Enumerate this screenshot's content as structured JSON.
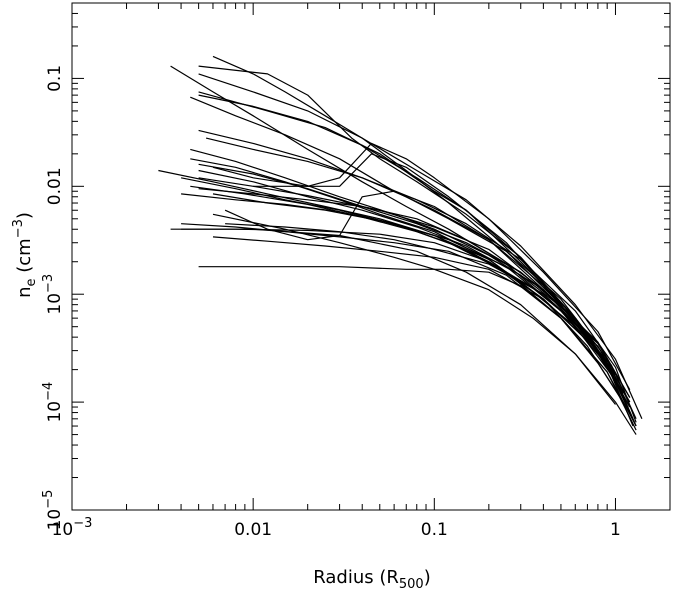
{
  "chart_data": {
    "type": "line",
    "title": "",
    "xlabel": {
      "text": "Radius (R",
      "sub": "500",
      "suffix": ")"
    },
    "ylabel": {
      "pre": "n",
      "sub": "e",
      "mid": " (cm",
      "sup": "−3",
      "post": ")"
    },
    "xscale": "log",
    "yscale": "log",
    "xlim": [
      0.001,
      2
    ],
    "ylim": [
      1e-05,
      0.5
    ],
    "grid": false,
    "legend": "none",
    "line_color": "#000000",
    "x_ticks": [
      {
        "value": 0.001,
        "base": "10",
        "exp": "−3"
      },
      {
        "value": 0.01,
        "text": "0.01"
      },
      {
        "value": 0.1,
        "text": "0.1"
      },
      {
        "value": 1,
        "text": "1"
      }
    ],
    "y_ticks": [
      {
        "value": 1e-05,
        "base": "10",
        "exp": "−5"
      },
      {
        "value": 0.0001,
        "base": "10",
        "exp": "−4"
      },
      {
        "value": 0.001,
        "base": "10",
        "exp": "−3"
      },
      {
        "value": 0.01,
        "text": "0.01"
      },
      {
        "value": 0.1,
        "text": "0.1"
      }
    ],
    "series": [
      {
        "x": [
          0.005,
          0.012,
          0.02,
          0.035,
          0.05,
          0.08,
          0.15,
          0.3,
          0.55,
          0.9,
          1.25
        ],
        "y": [
          0.13,
          0.11,
          0.07,
          0.028,
          0.018,
          0.011,
          0.0055,
          0.0022,
          0.0007,
          0.00023,
          7e-05
        ]
      },
      {
        "x": [
          0.006,
          0.01,
          0.015,
          0.025,
          0.04,
          0.07,
          0.12,
          0.25,
          0.5,
          0.9,
          1.2
        ],
        "y": [
          0.16,
          0.11,
          0.075,
          0.045,
          0.028,
          0.014,
          0.007,
          0.0025,
          0.0008,
          0.00023,
          8e-05
        ]
      },
      {
        "x": [
          0.0035,
          0.006,
          0.01,
          0.02,
          0.04,
          0.07,
          0.12,
          0.25,
          0.5,
          0.95,
          1.3
        ],
        "y": [
          0.13,
          0.075,
          0.045,
          0.022,
          0.011,
          0.0065,
          0.004,
          0.0019,
          0.0007,
          0.00022,
          7e-05
        ]
      },
      {
        "x": [
          0.0045,
          0.008,
          0.015,
          0.03,
          0.06,
          0.1,
          0.2,
          0.4,
          0.7,
          1.2
        ],
        "y": [
          0.067,
          0.045,
          0.03,
          0.018,
          0.009,
          0.006,
          0.0032,
          0.0012,
          0.0004,
          0.0001
        ]
      },
      {
        "x": [
          0.005,
          0.01,
          0.02,
          0.04,
          0.08,
          0.15,
          0.3,
          0.6,
          1.0,
          1.4
        ],
        "y": [
          0.11,
          0.075,
          0.05,
          0.028,
          0.014,
          0.0075,
          0.0028,
          0.0008,
          0.00025,
          7e-05
        ]
      },
      {
        "x": [
          0.005,
          0.01,
          0.02,
          0.04,
          0.08,
          0.15,
          0.3,
          0.6,
          1.0
        ],
        "y": [
          0.07,
          0.055,
          0.04,
          0.024,
          0.012,
          0.006,
          0.0022,
          0.0006,
          0.00017
        ]
      },
      {
        "x": [
          0.005,
          0.01,
          0.02,
          0.04,
          0.07,
          0.12,
          0.25,
          0.5,
          0.9,
          1.3
        ],
        "y": [
          0.033,
          0.025,
          0.018,
          0.012,
          0.008,
          0.005,
          0.0025,
          0.0009,
          0.00025,
          6e-05
        ]
      },
      {
        "x": [
          0.0045,
          0.008,
          0.015,
          0.03,
          0.06,
          0.1,
          0.2,
          0.4,
          0.7,
          1.1
        ],
        "y": [
          0.022,
          0.017,
          0.012,
          0.008,
          0.0055,
          0.004,
          0.0023,
          0.0011,
          0.0004,
          0.00012
        ]
      },
      {
        "x": [
          0.0045,
          0.008,
          0.015,
          0.03,
          0.05,
          0.1,
          0.2,
          0.4,
          0.8,
          1.2
        ],
        "y": [
          0.018,
          0.015,
          0.011,
          0.0075,
          0.0055,
          0.0038,
          0.0021,
          0.0009,
          0.0003,
          9e-05
        ]
      },
      {
        "x": [
          0.005,
          0.01,
          0.02,
          0.04,
          0.08,
          0.15,
          0.3,
          0.6,
          1.0
        ],
        "y": [
          0.016,
          0.013,
          0.0095,
          0.0065,
          0.0045,
          0.003,
          0.0016,
          0.0006,
          0.00018
        ]
      },
      {
        "x": [
          0.005,
          0.01,
          0.02,
          0.04,
          0.08,
          0.15,
          0.3,
          0.6,
          0.95
        ],
        "y": [
          0.014,
          0.011,
          0.008,
          0.006,
          0.0042,
          0.0028,
          0.0015,
          0.0006,
          0.00019
        ]
      },
      {
        "x": [
          0.003,
          0.006,
          0.012,
          0.025,
          0.05,
          0.1,
          0.2,
          0.4,
          0.7,
          1.1
        ],
        "y": [
          0.014,
          0.011,
          0.0085,
          0.0065,
          0.005,
          0.0035,
          0.002,
          0.0009,
          0.00033,
          0.0001
        ]
      },
      {
        "x": [
          0.004,
          0.008,
          0.015,
          0.03,
          0.06,
          0.12,
          0.25,
          0.5,
          0.9,
          1.3
        ],
        "y": [
          0.012,
          0.0095,
          0.0075,
          0.006,
          0.0045,
          0.0032,
          0.0018,
          0.0007,
          0.00022,
          6e-05
        ]
      },
      {
        "x": [
          0.0045,
          0.009,
          0.02,
          0.04,
          0.08,
          0.15,
          0.3,
          0.6,
          1.0
        ],
        "y": [
          0.01,
          0.0085,
          0.0068,
          0.0052,
          0.0038,
          0.0026,
          0.0013,
          0.0005,
          0.00016
        ]
      },
      {
        "x": [
          0.005,
          0.01,
          0.02,
          0.04,
          0.08,
          0.15,
          0.3,
          0.6,
          1.0
        ],
        "y": [
          0.0095,
          0.0085,
          0.0075,
          0.0065,
          0.005,
          0.0032,
          0.0016,
          0.0006,
          0.00018
        ]
      },
      {
        "x": [
          0.004,
          0.008,
          0.015,
          0.03,
          0.06,
          0.12,
          0.25,
          0.5,
          0.9,
          1.3
        ],
        "y": [
          0.0085,
          0.0075,
          0.0068,
          0.0058,
          0.0045,
          0.003,
          0.0016,
          0.0006,
          0.00019,
          5.5e-05
        ]
      },
      {
        "x": [
          0.004,
          0.008,
          0.015,
          0.03,
          0.06,
          0.12,
          0.25,
          0.5,
          0.9,
          1.3
        ],
        "y": [
          0.0045,
          0.0042,
          0.0038,
          0.0034,
          0.003,
          0.0025,
          0.0015,
          0.0006,
          0.00019,
          6e-05
        ]
      },
      {
        "x": [
          0.0035,
          0.008,
          0.02,
          0.05,
          0.1,
          0.2,
          0.4,
          0.8,
          1.2
        ],
        "y": [
          0.004,
          0.004,
          0.0039,
          0.0036,
          0.003,
          0.002,
          0.001,
          0.00035,
          0.00011
        ]
      },
      {
        "x": [
          0.007,
          0.015,
          0.03,
          0.06,
          0.1,
          0.2,
          0.4,
          0.8,
          1.2
        ],
        "y": [
          0.0045,
          0.0042,
          0.0038,
          0.0032,
          0.0026,
          0.0019,
          0.001,
          0.00033,
          0.0001
        ]
      },
      {
        "x": [
          0.006,
          0.012,
          0.025,
          0.05,
          0.1,
          0.2,
          0.4,
          0.8,
          1.2
        ],
        "y": [
          0.0034,
          0.0031,
          0.0028,
          0.0025,
          0.0022,
          0.0017,
          0.0009,
          0.0003,
          9e-05
        ]
      },
      {
        "x": [
          0.005,
          0.01,
          0.03,
          0.07,
          0.12,
          0.2,
          0.3,
          0.5,
          0.8,
          1.2
        ],
        "y": [
          0.0018,
          0.0018,
          0.0018,
          0.0017,
          0.0017,
          0.0016,
          0.0012,
          0.0006,
          0.00023,
          8e-05
        ]
      },
      {
        "x": [
          0.006,
          0.015,
          0.03,
          0.06,
          0.1,
          0.2,
          0.35,
          0.6,
          1.0,
          1.3
        ],
        "y": [
          0.0055,
          0.004,
          0.003,
          0.0022,
          0.0017,
          0.0011,
          0.0006,
          0.00028,
          0.0001,
          5e-05
        ]
      },
      {
        "x": [
          0.006,
          0.01,
          0.02,
          0.03,
          0.045,
          0.07,
          0.12,
          0.25,
          0.5,
          0.9,
          1.25
        ],
        "y": [
          0.015,
          0.012,
          0.01,
          0.01,
          0.02,
          0.015,
          0.008,
          0.003,
          0.0008,
          0.00022,
          6e-05
        ]
      },
      {
        "x": [
          0.007,
          0.012,
          0.02,
          0.03,
          0.04,
          0.06,
          0.1,
          0.2,
          0.4,
          0.8
        ],
        "y": [
          0.006,
          0.004,
          0.0032,
          0.0035,
          0.008,
          0.009,
          0.0065,
          0.0032,
          0.0011,
          0.00035
        ]
      },
      {
        "x": [
          0.01,
          0.02,
          0.03,
          0.045,
          0.07,
          0.1,
          0.2,
          0.4,
          0.8,
          1.2
        ],
        "y": [
          0.01,
          0.01,
          0.012,
          0.025,
          0.018,
          0.012,
          0.005,
          0.0016,
          0.00045,
          0.00013
        ]
      },
      {
        "x": [
          0.005,
          0.012,
          0.025,
          0.05,
          0.1,
          0.15,
          0.3,
          0.6,
          1.0
        ],
        "y": [
          0.075,
          0.05,
          0.035,
          0.02,
          0.009,
          0.006,
          0.002,
          0.0006,
          0.00018
        ]
      },
      {
        "x": [
          0.0055,
          0.01,
          0.02,
          0.04,
          0.08,
          0.15,
          0.3,
          0.6,
          1.0,
          1.3
        ],
        "y": [
          0.028,
          0.022,
          0.017,
          0.012,
          0.0075,
          0.0045,
          0.0021,
          0.0007,
          0.00021,
          6.5e-05
        ]
      },
      {
        "x": [
          0.006,
          0.012,
          0.025,
          0.05,
          0.1,
          0.2,
          0.4,
          0.8,
          1.2
        ],
        "y": [
          0.0085,
          0.007,
          0.006,
          0.0048,
          0.0035,
          0.0021,
          0.0009,
          0.0003,
          9e-05
        ]
      },
      {
        "x": [
          0.004,
          0.01,
          0.03,
          0.08,
          0.15,
          0.3,
          0.6,
          1.0
        ],
        "y": [
          0.004,
          0.004,
          0.0035,
          0.0025,
          0.0016,
          0.0008,
          0.00028,
          9.5e-05
        ]
      },
      {
        "x": [
          0.005,
          0.01,
          0.02,
          0.05,
          0.1,
          0.2,
          0.4,
          0.8,
          1.2
        ],
        "y": [
          0.012,
          0.01,
          0.0082,
          0.006,
          0.0042,
          0.0026,
          0.0011,
          0.00036,
          0.00011
        ]
      }
    ]
  }
}
